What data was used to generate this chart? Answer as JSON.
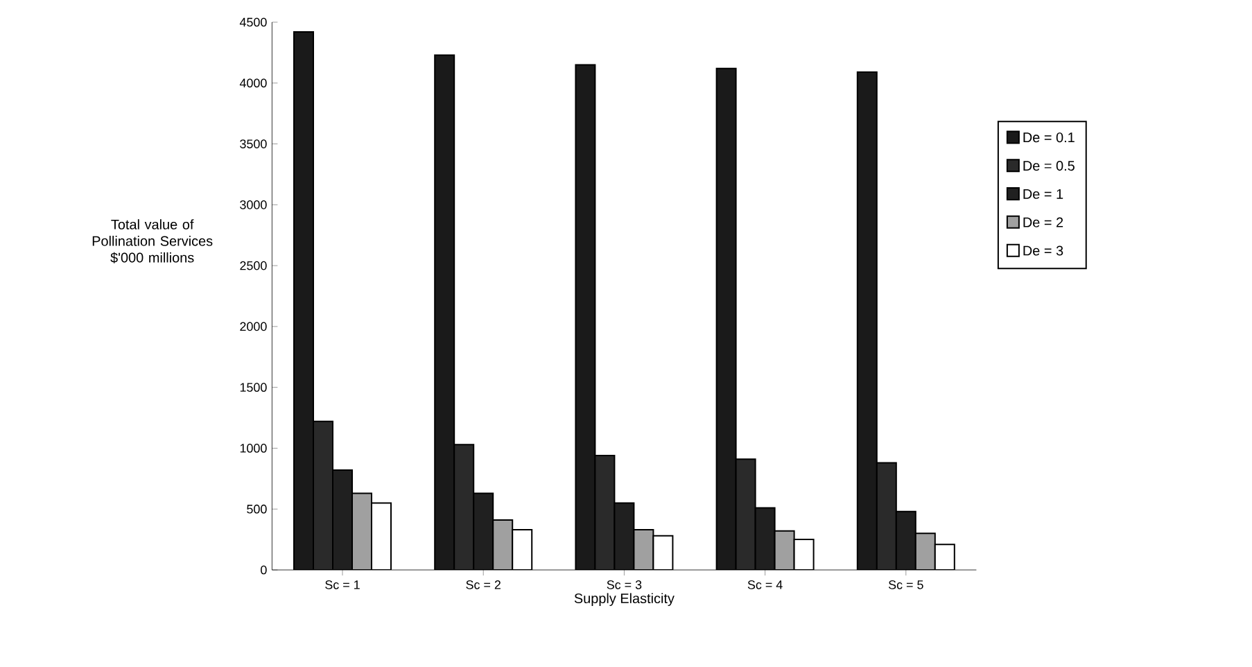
{
  "chart_data": {
    "type": "bar",
    "xlabel": "Supply Elasticity",
    "ylabel": "Total value of Pollination Services $'000 millions",
    "categories": [
      "Sc = 1",
      "Sc = 2",
      "Sc = 3",
      "Sc = 4",
      "Sc = 5"
    ],
    "series": [
      {
        "name": "De = 0.1",
        "color": "#1a1a1a",
        "values": [
          4420,
          4230,
          4150,
          4120,
          4090
        ]
      },
      {
        "name": "De = 0.5",
        "color": "#2a2a2a",
        "values": [
          1220,
          1030,
          940,
          910,
          880
        ]
      },
      {
        "name": "De = 1",
        "color": "#202020",
        "values": [
          820,
          630,
          550,
          510,
          480
        ]
      },
      {
        "name": "De = 2",
        "color": "#a0a0a0",
        "values": [
          630,
          410,
          330,
          320,
          300
        ]
      },
      {
        "name": "De = 3",
        "color": "#ffffff",
        "values": [
          550,
          330,
          280,
          250,
          210
        ]
      }
    ],
    "ylim": [
      0,
      4500
    ],
    "yticks": [
      0,
      500,
      1000,
      1500,
      2000,
      2500,
      3000,
      3500,
      4000,
      4500
    ],
    "legend": "right"
  }
}
